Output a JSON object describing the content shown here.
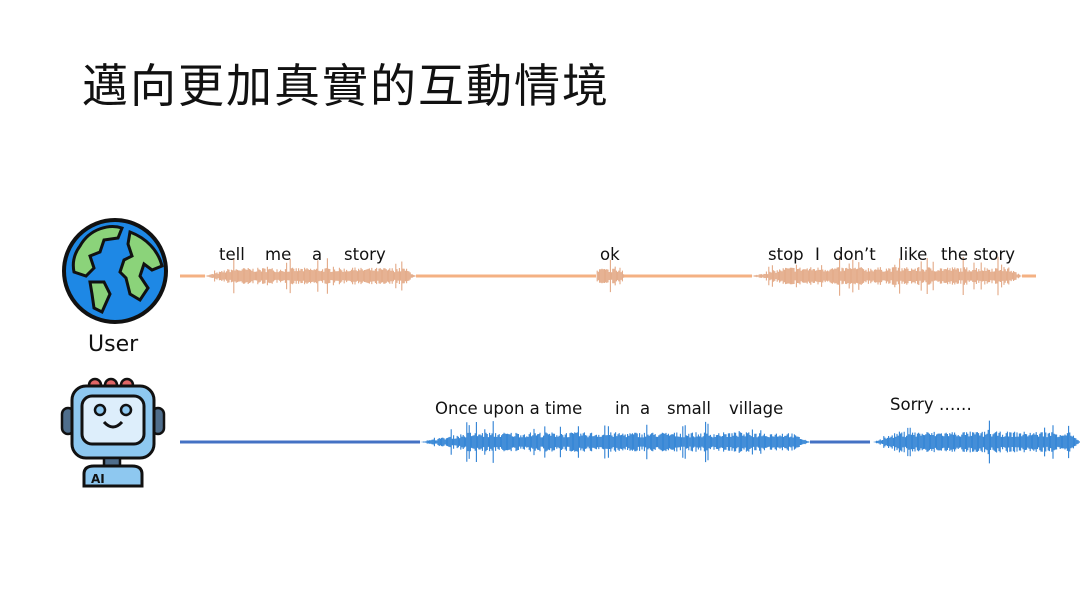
{
  "title": "邁向更加真實的互動情境",
  "user": {
    "label": "User",
    "icon": "globe-icon",
    "color": "#F4B183",
    "wave_color": "#E0A07A",
    "words": [
      "tell",
      "me",
      "a",
      "story",
      "ok",
      "stop",
      "I",
      "don’t",
      "like",
      "the story"
    ]
  },
  "ai": {
    "icon": "robot-icon",
    "icon_text": "AI",
    "color": "#4472C4",
    "wave_color": "#1874D0",
    "words": [
      "Once upon a time",
      "in",
      "a",
      "small",
      "village",
      "Sorry ……"
    ]
  }
}
